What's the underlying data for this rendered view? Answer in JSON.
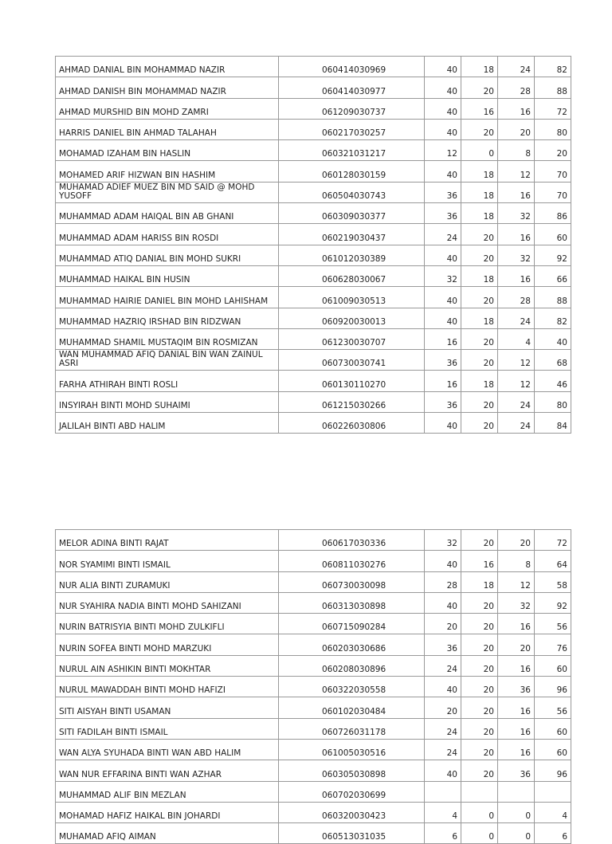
{
  "tables": [
    {
      "rows": [
        {
          "name": "AHMAD DANIAL BIN MOHAMMAD NAZIR",
          "ic": "060414030969",
          "s1": "40",
          "s2": "18",
          "s3": "24",
          "total": "82"
        },
        {
          "name": "AHMAD DANISH BIN MOHAMMAD NAZIR",
          "ic": "060414030977",
          "s1": "40",
          "s2": "20",
          "s3": "28",
          "total": "88"
        },
        {
          "name": "AHMAD MURSHID BIN MOHD ZAMRI",
          "ic": "061209030737",
          "s1": "40",
          "s2": "16",
          "s3": "16",
          "total": "72"
        },
        {
          "name": "HARRIS DANIEL BIN AHMAD TALAHAH",
          "ic": "060217030257",
          "s1": "40",
          "s2": "20",
          "s3": "20",
          "total": "80"
        },
        {
          "name": "MOHAMAD IZAHAM BIN HASLIN",
          "ic": "060321031217",
          "s1": "12",
          "s2": "0",
          "s3": "8",
          "total": "20"
        },
        {
          "name": "MOHAMED ARIF HIZWAN BIN HASHIM",
          "ic": "060128030159",
          "s1": "40",
          "s2": "18",
          "s3": "12",
          "total": "70"
        },
        {
          "name": "MUHAMAD ADIEF MUEZ BIN MD SAID @ MOHD YUSOFF",
          "ic": "060504030743",
          "s1": "36",
          "s2": "18",
          "s3": "16",
          "total": "70"
        },
        {
          "name": "MUHAMMAD ADAM HAIQAL BIN AB GHANI",
          "ic": "060309030377",
          "s1": "36",
          "s2": "18",
          "s3": "32",
          "total": "86"
        },
        {
          "name": "MUHAMMAD ADAM HARISS BIN ROSDI",
          "ic": "060219030437",
          "s1": "24",
          "s2": "20",
          "s3": "16",
          "total": "60"
        },
        {
          "name": "MUHAMMAD ATIQ DANIAL BIN MOHD SUKRI",
          "ic": "061012030389",
          "s1": "40",
          "s2": "20",
          "s3": "32",
          "total": "92"
        },
        {
          "name": "MUHAMMAD HAIKAL BIN HUSIN",
          "ic": "060628030067",
          "s1": "32",
          "s2": "18",
          "s3": "16",
          "total": "66"
        },
        {
          "name": "MUHAMMAD HAIRIE DANIEL BIN MOHD LAHISHAM",
          "ic": "061009030513",
          "s1": "40",
          "s2": "20",
          "s3": "28",
          "total": "88"
        },
        {
          "name": "MUHAMMAD HAZRIQ IRSHAD BIN RIDZWAN",
          "ic": "060920030013",
          "s1": "40",
          "s2": "18",
          "s3": "24",
          "total": "82"
        },
        {
          "name": "MUHAMMAD SHAMIL MUSTAQIM BIN ROSMIZAN",
          "ic": "061230030707",
          "s1": "16",
          "s2": "20",
          "s3": "4",
          "total": "40"
        },
        {
          "name": "WAN MUHAMMAD AFIQ DANIAL BIN WAN ZAINUL ASRI",
          "ic": "060730030741",
          "s1": "36",
          "s2": "20",
          "s3": "12",
          "total": "68"
        },
        {
          "name": "FARHA ATHIRAH BINTI ROSLI",
          "ic": "060130110270",
          "s1": "16",
          "s2": "18",
          "s3": "12",
          "total": "46"
        },
        {
          "name": "INSYIRAH BINTI MOHD SUHAIMI",
          "ic": "061215030266",
          "s1": "36",
          "s2": "20",
          "s3": "24",
          "total": "80"
        },
        {
          "name": "JALILAH BINTI ABD HALIM",
          "ic": "060226030806",
          "s1": "40",
          "s2": "20",
          "s3": "24",
          "total": "84"
        }
      ]
    },
    {
      "rows": [
        {
          "name": "MELOR ADINA BINTI RAJAT",
          "ic": "060617030336",
          "s1": "32",
          "s2": "20",
          "s3": "20",
          "total": "72"
        },
        {
          "name": "NOR SYAMIMI BINTI ISMAIL",
          "ic": "060811030276",
          "s1": "40",
          "s2": "16",
          "s3": "8",
          "total": "64"
        },
        {
          "name": "NUR ALIA BINTI ZURAMUKI",
          "ic": "060730030098",
          "s1": "28",
          "s2": "18",
          "s3": "12",
          "total": "58"
        },
        {
          "name": "NUR SYAHIRA NADIA BINTI MOHD SAHIZANI",
          "ic": "060313030898",
          "s1": "40",
          "s2": "20",
          "s3": "32",
          "total": "92"
        },
        {
          "name": "NURIN BATRISYIA BINTI MOHD ZULKIFLI",
          "ic": "060715090284",
          "s1": "20",
          "s2": "20",
          "s3": "16",
          "total": "56"
        },
        {
          "name": "NURIN SOFEA BINTI MOHD MARZUKI",
          "ic": "060203030686",
          "s1": "36",
          "s2": "20",
          "s3": "20",
          "total": "76"
        },
        {
          "name": "NURUL AIN ASHIKIN BINTI MOKHTAR",
          "ic": "060208030896",
          "s1": "24",
          "s2": "20",
          "s3": "16",
          "total": "60"
        },
        {
          "name": "NURUL MAWADDAH BINTI MOHD HAFIZI",
          "ic": "060322030558",
          "s1": "40",
          "s2": "20",
          "s3": "36",
          "total": "96"
        },
        {
          "name": "SITI AISYAH BINTI USAMAN",
          "ic": "060102030484",
          "s1": "20",
          "s2": "20",
          "s3": "16",
          "total": "56"
        },
        {
          "name": "SITI FADILAH BINTI ISMAIL",
          "ic": "060726031178",
          "s1": "24",
          "s2": "20",
          "s3": "16",
          "total": "60"
        },
        {
          "name": "WAN ALYA SYUHADA BINTI WAN ABD HALIM",
          "ic": "061005030516",
          "s1": "24",
          "s2": "20",
          "s3": "16",
          "total": "60"
        },
        {
          "name": "WAN NUR EFFARINA BINTI WAN AZHAR",
          "ic": "060305030898",
          "s1": "40",
          "s2": "20",
          "s3": "36",
          "total": "96"
        },
        {
          "name": "MUHAMMAD ALIF BIN MEZLAN",
          "ic": "060702030699",
          "s1": "",
          "s2": "",
          "s3": "",
          "total": ""
        },
        {
          "name": "MOHAMAD HAFIZ HAIKAL BIN JOHARDI",
          "ic": "060320030423",
          "s1": "4",
          "s2": "0",
          "s3": "0",
          "total": "4"
        },
        {
          "name": "MUHAMAD AFIQ AIMAN",
          "ic": "060513031035",
          "s1": "6",
          "s2": "0",
          "s3": "0",
          "total": "6"
        }
      ]
    }
  ]
}
